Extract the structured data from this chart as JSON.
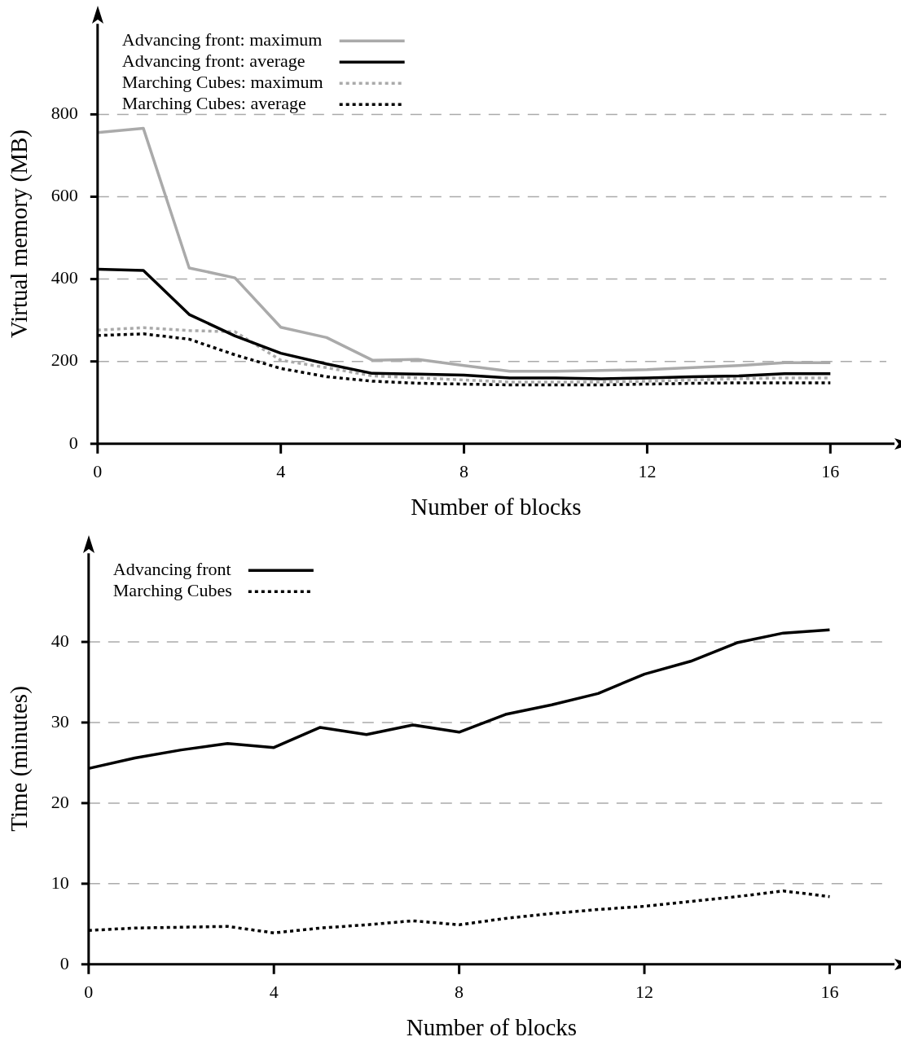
{
  "chart_data": [
    {
      "type": "line",
      "xlabel": "Number of blocks",
      "ylabel": "Virtual memory (MB)",
      "x": [
        0,
        1,
        2,
        3,
        4,
        5,
        6,
        7,
        8,
        9,
        10,
        11,
        12,
        13,
        14,
        15,
        16
      ],
      "xlim": [
        0,
        17.4
      ],
      "xticks": [
        0,
        4,
        8,
        12,
        16
      ],
      "ylim": [
        0,
        1020
      ],
      "yticks": [
        0,
        200,
        400,
        600,
        800
      ],
      "grid": "y",
      "legend": "top left",
      "series": [
        {
          "name": "Advancing front: maximum",
          "color": "#aaaaaa",
          "line_style": "solid",
          "values": [
            756,
            766,
            427,
            403,
            283,
            258,
            203,
            205,
            190,
            176,
            176,
            178,
            180,
            185,
            190,
            197,
            197
          ]
        },
        {
          "name": "Advancing front: average",
          "color": "#000000",
          "line_style": "solid",
          "values": [
            424,
            421,
            314,
            262,
            220,
            194,
            171,
            169,
            167,
            160,
            160,
            158,
            160,
            163,
            165,
            170,
            170
          ]
        },
        {
          "name": "Marching Cubes: maximum",
          "color": "#aaaaaa",
          "line_style": "dotted",
          "values": [
            276,
            282,
            275,
            272,
            203,
            185,
            165,
            160,
            155,
            150,
            150,
            150,
            152,
            155,
            158,
            160,
            160
          ]
        },
        {
          "name": "Marching Cubes: average",
          "color": "#000000",
          "line_style": "dotted",
          "values": [
            263,
            267,
            254,
            216,
            183,
            163,
            152,
            147,
            145,
            143,
            143,
            143,
            145,
            147,
            148,
            148,
            148
          ]
        }
      ]
    },
    {
      "type": "line",
      "xlabel": "Number of blocks",
      "ylabel": "Time (minutes)",
      "x": [
        0,
        1,
        2,
        3,
        4,
        5,
        6,
        7,
        8,
        9,
        10,
        11,
        12,
        13,
        14,
        15,
        16
      ],
      "xlim": [
        0,
        17.4
      ],
      "xticks": [
        0,
        4,
        8,
        12,
        16
      ],
      "ylim": [
        0,
        51
      ],
      "yticks": [
        0,
        10,
        20,
        30,
        40
      ],
      "grid": "y",
      "legend": "top left",
      "series": [
        {
          "name": "Advancing front",
          "color": "#000000",
          "line_style": "solid",
          "values": [
            24.3,
            25.6,
            26.6,
            27.4,
            26.9,
            29.4,
            28.5,
            29.7,
            28.8,
            31.0,
            32.2,
            33.6,
            36.0,
            37.6,
            39.9,
            41.1,
            41.5
          ]
        },
        {
          "name": "Marching Cubes",
          "color": "#000000",
          "line_style": "dotted",
          "values": [
            4.2,
            4.5,
            4.6,
            4.7,
            3.9,
            4.5,
            4.9,
            5.4,
            4.9,
            5.7,
            6.3,
            6.8,
            7.2,
            7.8,
            8.4,
            9.1,
            8.4
          ]
        }
      ]
    }
  ]
}
